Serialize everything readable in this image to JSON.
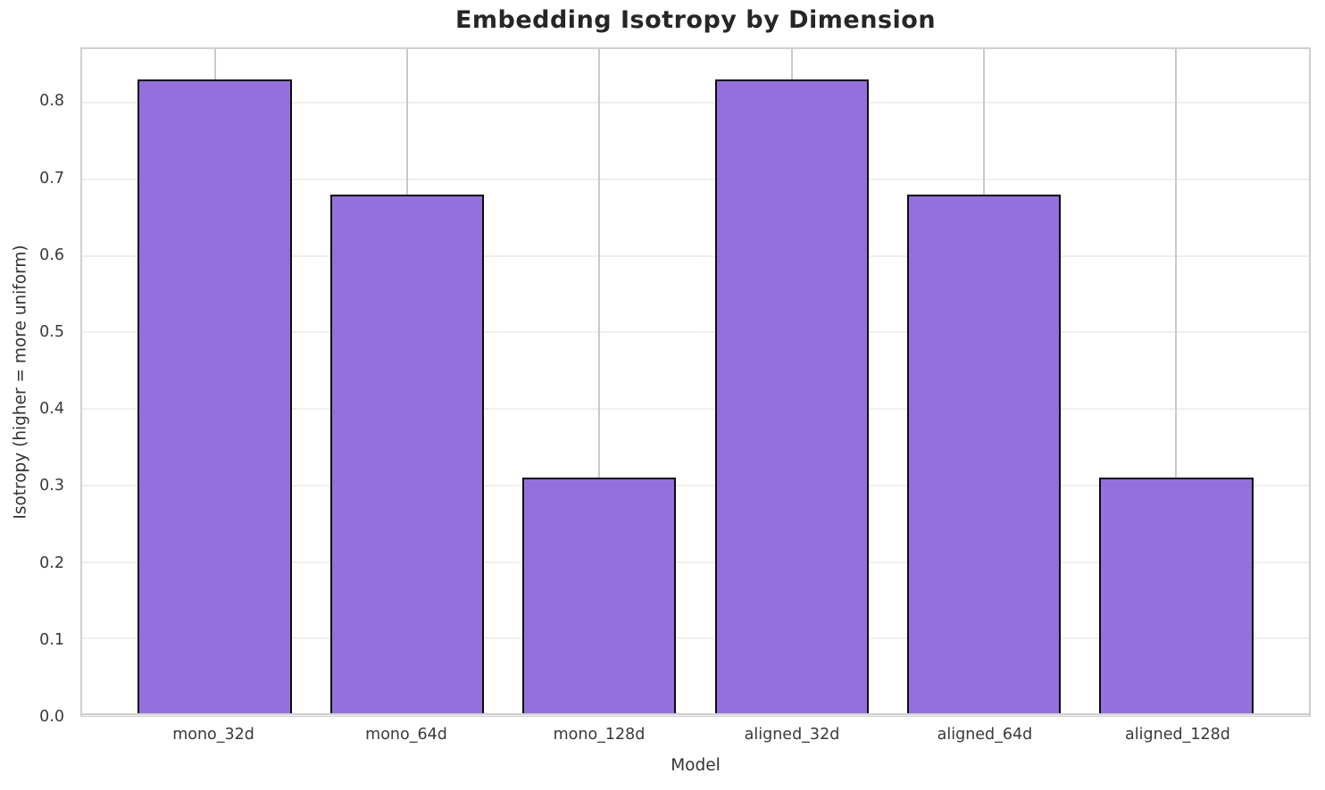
{
  "chart_data": {
    "type": "bar",
    "title": "Embedding Isotropy by Dimension",
    "xlabel": "Model",
    "ylabel": "Isotropy (higher = more uniform)",
    "categories": [
      "mono_32d",
      "mono_64d",
      "mono_128d",
      "aligned_32d",
      "aligned_64d",
      "aligned_128d"
    ],
    "values": [
      0.83,
      0.68,
      0.31,
      0.83,
      0.68,
      0.31
    ],
    "ylim": [
      0,
      0.87
    ],
    "yticks": [
      0.0,
      0.1,
      0.2,
      0.3,
      0.4,
      0.5,
      0.6,
      0.7,
      0.8
    ],
    "grid": true,
    "legend_position": "none",
    "bar_width_fraction": 0.8,
    "colors": {
      "bar_fill": "#9370DB",
      "bar_edge": "#0d0d0d",
      "h_gridline": "#efefef",
      "v_gridline": "#c9c9c9",
      "spine": "#d0d0d0",
      "title_text": "#262626",
      "tick_text": "#3a3a3a",
      "axis_label_text": "#333333",
      "background": "#ffffff"
    }
  }
}
